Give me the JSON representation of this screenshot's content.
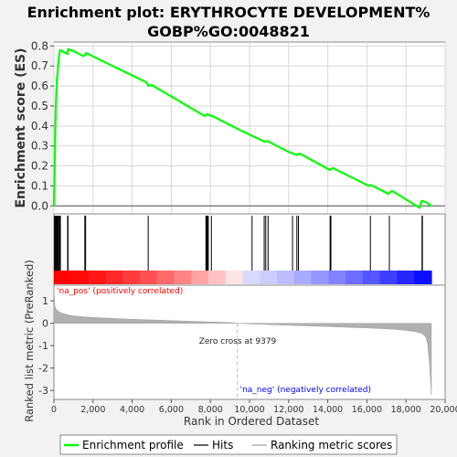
{
  "chart_data": {
    "type": "line",
    "title": "Enrichment plot: ERYTHROCYTE DEVELOPMENT%\nGOBP%GO:0048821",
    "title_lines": [
      "Enrichment plot: ERYTHROCYTE DEVELOPMENT%",
      "GOBP%GO:0048821"
    ],
    "xlabel": "Rank in Ordered Dataset",
    "xlim": [
      0,
      20000
    ],
    "x_ticks": [
      0,
      2000,
      4000,
      6000,
      8000,
      10000,
      12000,
      14000,
      16000,
      18000,
      20000
    ],
    "x_tick_labels": [
      "0",
      "2,000",
      "4,000",
      "6,000",
      "8,000",
      "10,000",
      "12,000",
      "14,000",
      "16,000",
      "18,000",
      "20,000"
    ],
    "top_panel": {
      "ylabel": "Enrichment score (ES)",
      "ylim": [
        -0.04,
        0.82
      ],
      "y_ticks": [
        0.0,
        0.1,
        0.2,
        0.3,
        0.4,
        0.5,
        0.6,
        0.7,
        0.8
      ],
      "y_tick_labels": [
        "0.0",
        "0.1",
        "0.2",
        "0.3",
        "0.4",
        "0.5",
        "0.6",
        "0.7",
        "0.8"
      ],
      "grid": true,
      "series": [
        {
          "name": "Enrichment profile",
          "color": "#00ff00",
          "x": [
            0,
            20,
            40,
            60,
            80,
            100,
            120,
            140,
            160,
            180,
            200,
            230,
            260,
            320,
            500,
            700,
            720,
            1000,
            1500,
            1600,
            1650,
            3000,
            4700,
            4850,
            5000,
            7700,
            7800,
            7850,
            7900,
            8100,
            9500,
            10800,
            10900,
            11000,
            12000,
            12400,
            12500,
            12600,
            14100,
            14200,
            14250,
            16100,
            16200,
            16300,
            17100,
            17200,
            17300,
            18700,
            18800,
            19000,
            19300
          ],
          "y": [
            0.0,
            0.1,
            0.22,
            0.34,
            0.42,
            0.5,
            0.56,
            0.6,
            0.64,
            0.66,
            0.69,
            0.72,
            0.75,
            0.78,
            0.77,
            0.76,
            0.785,
            0.775,
            0.75,
            0.755,
            0.765,
            0.7,
            0.62,
            0.6,
            0.605,
            0.45,
            0.455,
            0.46,
            0.455,
            0.45,
            0.38,
            0.32,
            0.325,
            0.32,
            0.27,
            0.255,
            0.26,
            0.26,
            0.18,
            0.185,
            0.19,
            0.1,
            0.105,
            0.1,
            0.06,
            0.07,
            0.075,
            -0.01,
            0.025,
            0.02,
            0.0
          ]
        }
      ]
    },
    "hits_panel": {
      "hit_positions": [
        30,
        60,
        90,
        120,
        150,
        180,
        210,
        250,
        300,
        330,
        700,
        720,
        1580,
        1620,
        4820,
        7770,
        7810,
        7850,
        7890,
        8050,
        10130,
        10750,
        10830,
        10950,
        12200,
        12420,
        12500,
        14120,
        14160,
        16180,
        17150,
        18820,
        18840
      ]
    },
    "bottom_panel": {
      "ylabel": "Ranked list metric (PreRanked)",
      "ylim": [
        -3.4,
        1.7
      ],
      "y_ticks": [
        -3,
        -2,
        -1,
        0,
        1
      ],
      "y_tick_labels": [
        "-3",
        "-2",
        "-1",
        "0",
        "1"
      ],
      "zero_cross": 9379,
      "zero_cross_label": "Zero cross at 9379",
      "pos_label": "'na_pos' (positively correlated)",
      "neg_label": "'na_neg' (negatively correlated)",
      "pos_color": "#ff0000",
      "neg_color": "#0000ff",
      "metric_color": "#b0b0b0",
      "metric_curve": {
        "x": [
          0,
          50,
          100,
          200,
          400,
          700,
          1000,
          1500,
          2000,
          3000,
          4000,
          5000,
          6000,
          7000,
          8000,
          9000,
          9379,
          10000,
          11000,
          12000,
          13000,
          14000,
          15000,
          16000,
          17000,
          17500,
          18000,
          18500,
          18800,
          19000,
          19100,
          19200,
          19300
        ],
        "y": [
          1.5,
          0.75,
          0.65,
          0.55,
          0.45,
          0.38,
          0.33,
          0.29,
          0.26,
          0.22,
          0.18,
          0.15,
          0.12,
          0.09,
          0.06,
          0.03,
          0.0,
          -0.03,
          -0.06,
          -0.09,
          -0.12,
          -0.15,
          -0.18,
          -0.21,
          -0.25,
          -0.28,
          -0.32,
          -0.38,
          -0.45,
          -0.6,
          -0.9,
          -1.8,
          -3.2
        ]
      }
    },
    "legend": {
      "placement": "bottom",
      "entries": [
        {
          "name": "Enrichment profile",
          "color": "#00ff00"
        },
        {
          "name": "Hits",
          "color": "#000000"
        },
        {
          "name": "Ranking metric scores",
          "color": "#b0b0b0"
        }
      ]
    }
  }
}
